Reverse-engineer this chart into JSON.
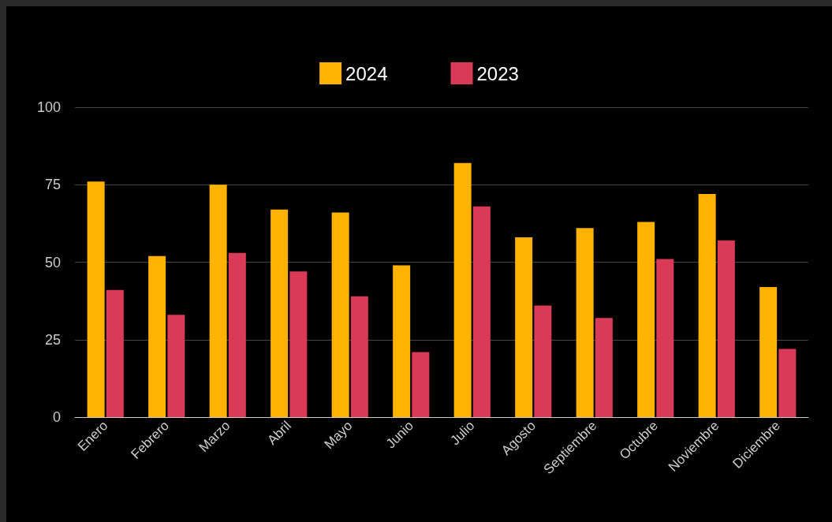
{
  "chart_data": {
    "type": "bar",
    "categories": [
      "Enero",
      "Febrero",
      "Marzo",
      "Abril",
      "Mayo",
      "Junio",
      "Julio",
      "Agosto",
      "Septiembre",
      "Octubre",
      "Noviembre",
      "Diciembre"
    ],
    "series": [
      {
        "name": "2024",
        "color": "#ffb300",
        "values": [
          76,
          52,
          75,
          67,
          66,
          49,
          82,
          58,
          61,
          63,
          72,
          42
        ]
      },
      {
        "name": "2023",
        "color": "#d93a57",
        "values": [
          41,
          33,
          53,
          47,
          39,
          21,
          68,
          36,
          32,
          51,
          57,
          22
        ]
      }
    ],
    "ylim": [
      0,
      100
    ],
    "yticks": [
      0,
      25,
      50,
      75,
      100
    ],
    "grid": "y",
    "legend": "top"
  }
}
